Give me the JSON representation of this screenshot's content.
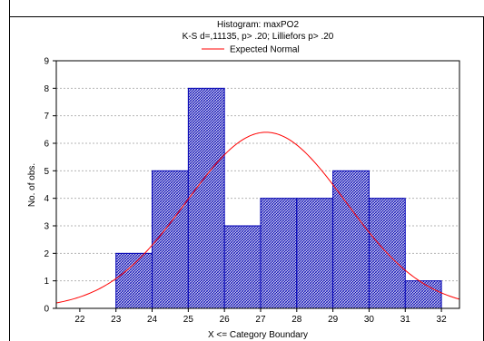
{
  "chart_data": {
    "type": "bar",
    "title": "Histogram: maxPO2",
    "subtitle": "K-S d=,11135, p> .20; Lilliefors p> .20",
    "legend": {
      "placement": "top-center",
      "entries": [
        {
          "name": "Expected Normal",
          "color": "#ff0000"
        }
      ]
    },
    "xlabel": "X <= Category Boundary",
    "ylabel": "No. of obs.",
    "xlim": [
      21.35,
      32.5
    ],
    "ylim": [
      0,
      9
    ],
    "x_ticks": [
      22,
      23,
      24,
      25,
      26,
      27,
      28,
      29,
      30,
      31,
      32
    ],
    "y_ticks": [
      0,
      1,
      2,
      3,
      4,
      5,
      6,
      7,
      8,
      9
    ],
    "grid": true,
    "bins": [
      {
        "from": 23,
        "to": 24,
        "count": 2
      },
      {
        "from": 24,
        "to": 25,
        "count": 5
      },
      {
        "from": 25,
        "to": 26,
        "count": 8
      },
      {
        "from": 26,
        "to": 27,
        "count": 3
      },
      {
        "from": 27,
        "to": 28,
        "count": 4
      },
      {
        "from": 28,
        "to": 29,
        "count": 4
      },
      {
        "from": 29,
        "to": 30,
        "count": 5
      },
      {
        "from": 30,
        "to": 31,
        "count": 4
      },
      {
        "from": 31,
        "to": 32,
        "count": 1
      }
    ],
    "expected_normal": {
      "mean": 27.15,
      "sd": 2.2,
      "peak": 6.4
    },
    "colors": {
      "bar_fill": "#d8d8ef",
      "bar_hatch": "#0000b4",
      "bar_stroke": "#0000b4",
      "curve": "#ff0000",
      "grid": "#b4b4b4"
    }
  }
}
